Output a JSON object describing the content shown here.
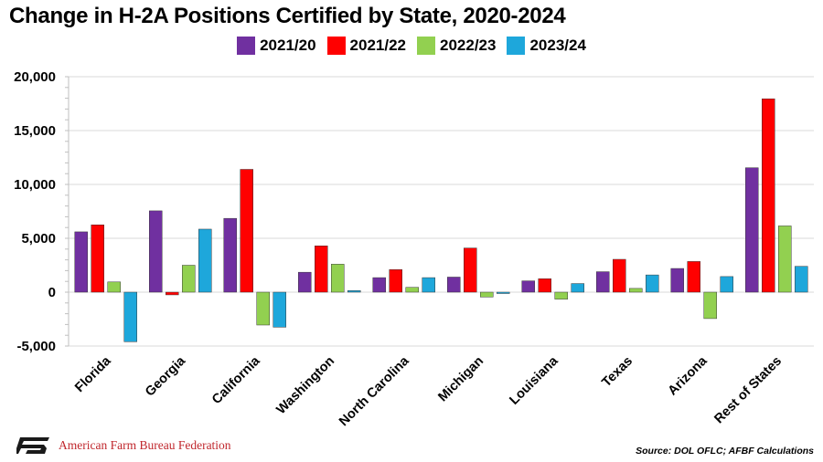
{
  "title": "Change in H-2A Positions Certified by State, 2020-2024",
  "footer": {
    "org_name": "American Farm Bureau Federation",
    "source": "Source: DOL OFLC; AFBF Calculations"
  },
  "chart_data": {
    "type": "bar",
    "categories": [
      "Florida",
      "Georgia",
      "California",
      "Washington",
      "North Carolina",
      "Michigan",
      "Louisiana",
      "Texas",
      "Arizona",
      "Rest of States"
    ],
    "series": [
      {
        "name": "2021/20",
        "color": "#7030a0",
        "values": [
          5600,
          7550,
          6850,
          1850,
          1350,
          1400,
          1050,
          1900,
          2200,
          11550
        ]
      },
      {
        "name": "2021/22",
        "color": "#ff0000",
        "values": [
          6250,
          -250,
          11400,
          4300,
          2100,
          4100,
          1250,
          3050,
          2850,
          17950
        ]
      },
      {
        "name": "2022/23",
        "color": "#92d050",
        "values": [
          950,
          2500,
          -3050,
          2600,
          450,
          -450,
          -650,
          350,
          -2450,
          6150
        ]
      },
      {
        "name": "2023/24",
        "color": "#1ea7db",
        "values": [
          -4600,
          5850,
          -3250,
          150,
          1350,
          -100,
          800,
          1600,
          1450,
          2400
        ]
      }
    ],
    "ylim": [
      -5000,
      20000
    ],
    "yticks": [
      -5000,
      0,
      5000,
      10000,
      15000,
      20000
    ],
    "ytick_labels": [
      "-5,000",
      "0",
      "5,000",
      "10,000",
      "15,000",
      "20,000"
    ],
    "grid": true,
    "legend": "top-center"
  }
}
